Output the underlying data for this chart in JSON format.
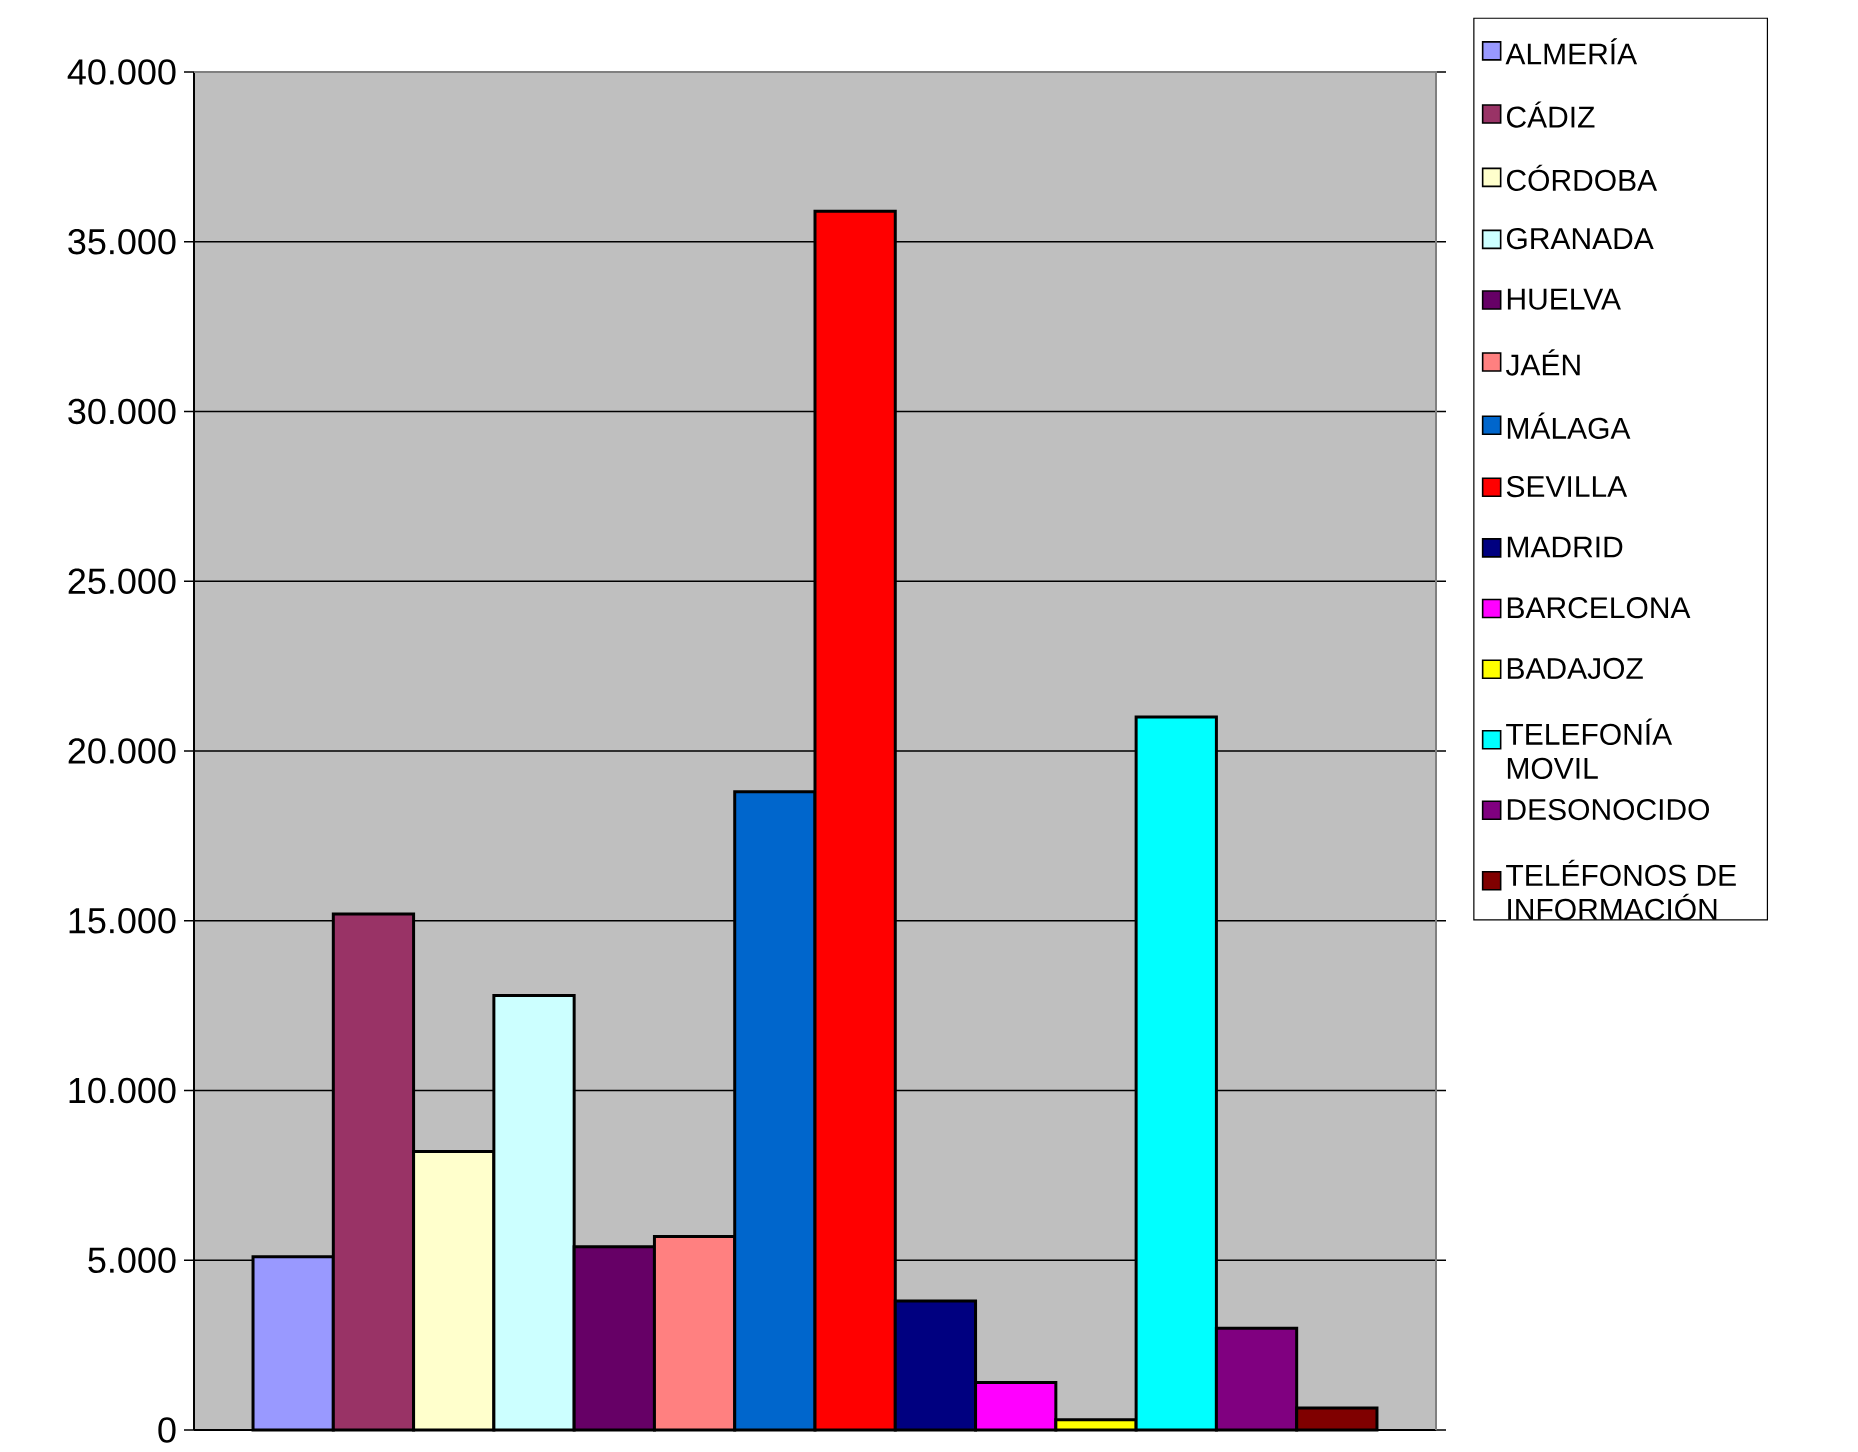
{
  "chart_data": {
    "type": "bar",
    "categories": [
      null
    ],
    "series": [
      {
        "name": "ALMERÍA",
        "color": "#9999ff",
        "values": [
          5100
        ]
      },
      {
        "name": "CÁDIZ",
        "color": "#993366",
        "values": [
          15200
        ]
      },
      {
        "name": "CÓRDOBA",
        "color": "#ffffcc",
        "values": [
          8200
        ]
      },
      {
        "name": "GRANADA",
        "color": "#ccffff",
        "values": [
          12800
        ]
      },
      {
        "name": "HUELVA",
        "color": "#660066",
        "values": [
          5400
        ]
      },
      {
        "name": "JAÉN",
        "color": "#ff8080",
        "values": [
          5700
        ]
      },
      {
        "name": "MÁLAGA",
        "color": "#0066cc",
        "values": [
          18800
        ]
      },
      {
        "name": "SEVILLA",
        "color": "#ff0000",
        "values": [
          35900
        ]
      },
      {
        "name": "MADRID",
        "color": "#000080",
        "values": [
          3800
        ]
      },
      {
        "name": "BARCELONA",
        "color": "#ff00ff",
        "values": [
          1400
        ]
      },
      {
        "name": "BADAJOZ",
        "color": "#ffff00",
        "values": [
          300
        ]
      },
      {
        "name": "TELEFONÍA MOVIL",
        "color": "#00ffff",
        "values": [
          21000
        ]
      },
      {
        "name": "DESONOCIDO",
        "color": "#800080",
        "values": [
          3000
        ]
      },
      {
        "name": "TELÉFONOS DE INFORMACIÓN",
        "color": "#800000",
        "values": [
          650
        ]
      }
    ],
    "ylim": [
      0,
      40000
    ],
    "yticks": [
      0,
      {
        "value": 5000,
        "label": "5.000"
      },
      {
        "value": 10000,
        "label": "10.000"
      },
      {
        "value": 15000,
        "label": "15.000"
      },
      {
        "value": 20000,
        "label": "20.000"
      },
      {
        "value": 25000,
        "label": "25.000"
      },
      {
        "value": 30000,
        "label": "30.000"
      },
      {
        "value": 35000,
        "label": "35.000"
      },
      {
        "value": 40000,
        "label": "40.000"
      }
    ],
    "grid": "y",
    "legend": "right"
  }
}
